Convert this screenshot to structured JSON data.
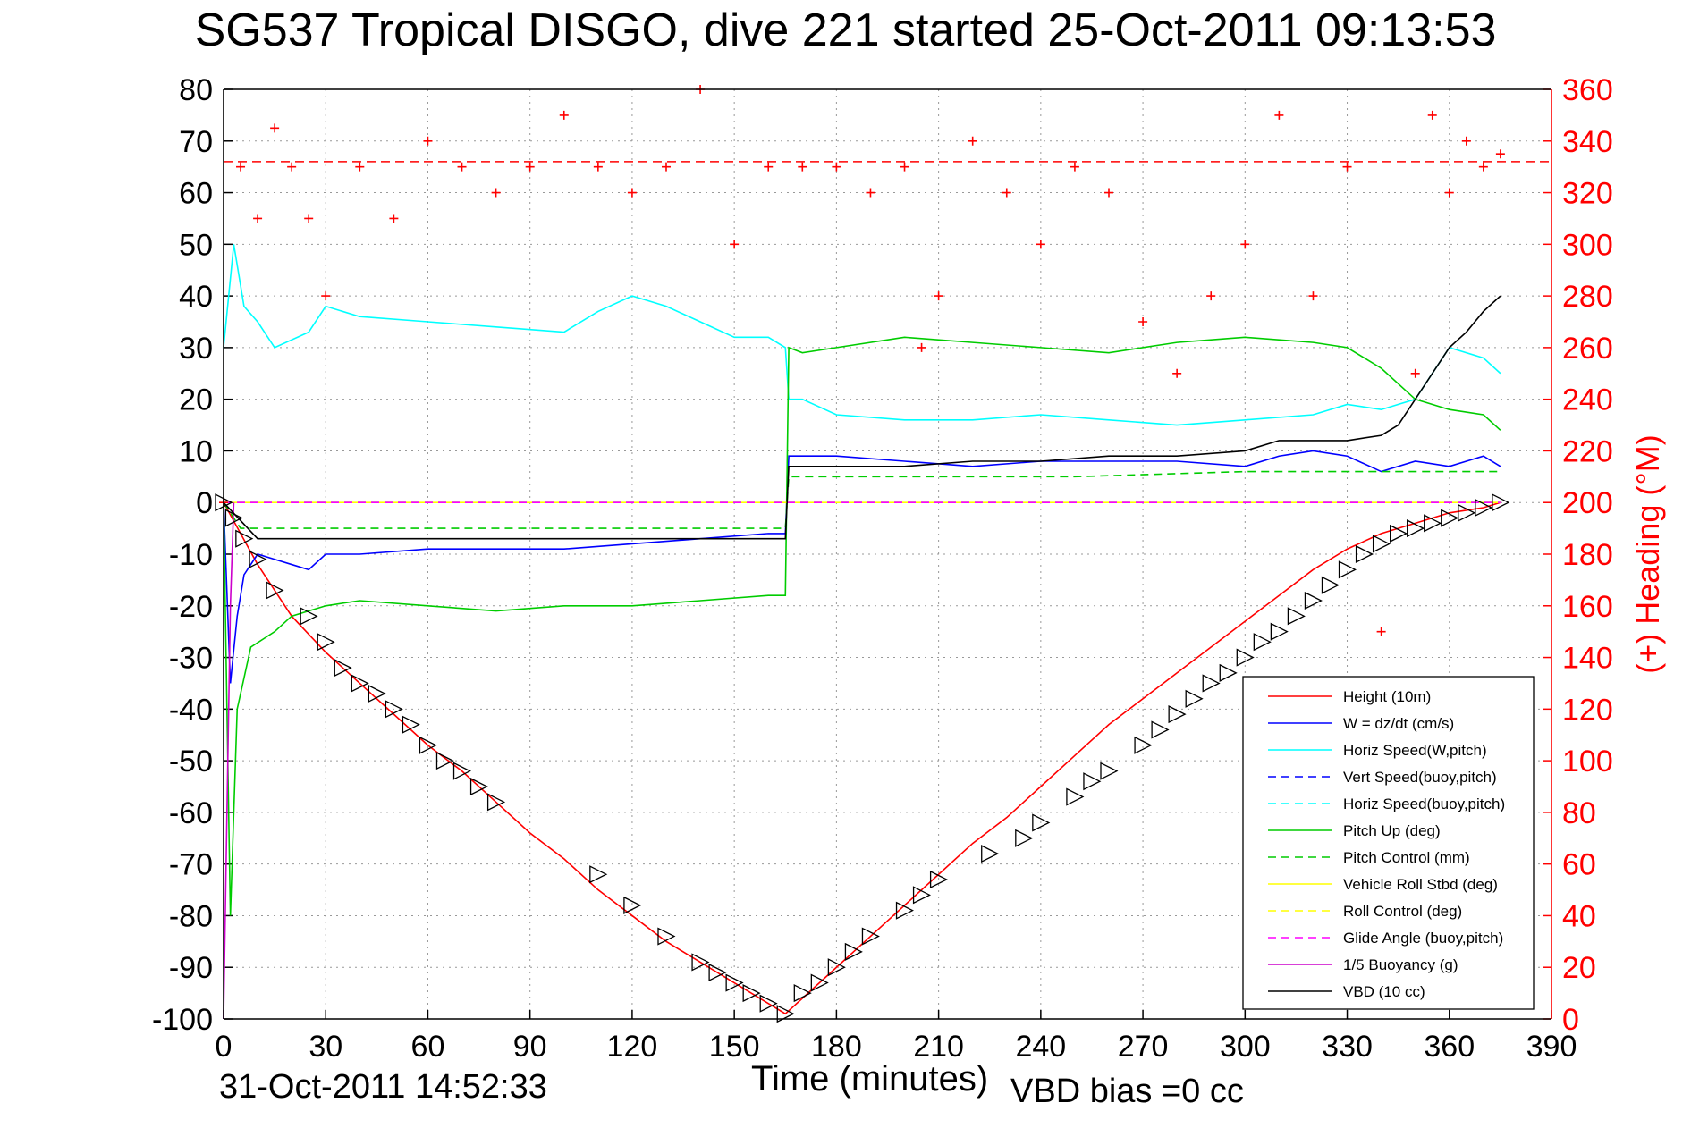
{
  "header": {
    "title": "SG537 Tropical DISGO, dive 221 started 25-Oct-2011 09:13:53"
  },
  "footer": {
    "plot_date": "31-Oct-2011 14:52:33",
    "vbd_bias": "VBD bias =0 cc"
  },
  "colors": {
    "height": "#ff0000",
    "w": "#0000ff",
    "horiz_speed": "#00ffff",
    "pitch": "#00cc00",
    "roll": "#ffff00",
    "glide": "#ff00ff",
    "buoyancy": "#cc00cc",
    "vbd": "#000000",
    "heading": "#ff0000"
  },
  "chart_data": {
    "type": "line",
    "title": "SG537 Tropical DISGO, dive 221 started 25-Oct-2011 09:13:53",
    "xlabel": "Time (minutes)",
    "ylabel": "",
    "y2label": "(+) Heading (°M)",
    "xlim": [
      0,
      390
    ],
    "ylim": [
      -100,
      80
    ],
    "y2lim": [
      0,
      360
    ],
    "grid": true,
    "legend_position": "bottom-right",
    "x_ticks": [
      "0",
      "30",
      "60",
      "90",
      "120",
      "150",
      "180",
      "210",
      "240",
      "270",
      "300",
      "330",
      "360",
      "390"
    ],
    "y_ticks": [
      "80",
      "70",
      "60",
      "50",
      "40",
      "30",
      "20",
      "10",
      "0",
      "-10",
      "-20",
      "-30",
      "-40",
      "-50",
      "-60",
      "-70",
      "-80",
      "-90",
      "-100"
    ],
    "y2_ticks": [
      "360",
      "340",
      "320",
      "300",
      "280",
      "260",
      "240",
      "220",
      "200",
      "180",
      "160",
      "140",
      "120",
      "100",
      "80",
      "60",
      "40",
      "20",
      "0"
    ],
    "heading_reference": 332,
    "series": [
      {
        "name": "Height (10m)",
        "style": "solid",
        "color": "#ff0000",
        "x": [
          0,
          5,
          10,
          20,
          30,
          40,
          50,
          60,
          70,
          80,
          90,
          100,
          110,
          120,
          130,
          140,
          150,
          160,
          165,
          170,
          180,
          190,
          200,
          210,
          220,
          230,
          240,
          250,
          260,
          270,
          280,
          290,
          300,
          310,
          320,
          330,
          340,
          350,
          360,
          370,
          375
        ],
        "y": [
          0,
          -6,
          -12,
          -22,
          -29,
          -35,
          -41,
          -47,
          -52,
          -58,
          -64,
          -69,
          -75,
          -80,
          -85,
          -89,
          -93,
          -97,
          -99,
          -96,
          -90,
          -84,
          -78,
          -72,
          -66,
          -61,
          -55,
          -49,
          -43,
          -38,
          -33,
          -28,
          -23,
          -18,
          -13,
          -9,
          -6,
          -4,
          -2,
          -1,
          0
        ]
      },
      {
        "name": "W = dz/dt (cm/s)",
        "style": "solid",
        "color": "#0000ff",
        "x": [
          0,
          2,
          4,
          6,
          10,
          15,
          20,
          25,
          30,
          40,
          60,
          80,
          100,
          120,
          140,
          160,
          165,
          166,
          170,
          180,
          200,
          220,
          240,
          260,
          280,
          300,
          310,
          320,
          330,
          340,
          350,
          360,
          370,
          375
        ],
        "y": [
          0,
          -35,
          -22,
          -14,
          -10,
          -11,
          -12,
          -13,
          -10,
          -10,
          -9,
          -9,
          -9,
          -8,
          -7,
          -6,
          -6,
          9,
          9,
          9,
          8,
          7,
          8,
          8,
          8,
          7,
          9,
          10,
          9,
          6,
          8,
          7,
          9,
          7
        ]
      },
      {
        "name": "Horiz Speed(W,pitch)",
        "style": "solid",
        "color": "#00ffff",
        "x": [
          0,
          3,
          6,
          10,
          15,
          25,
          30,
          40,
          60,
          80,
          100,
          110,
          120,
          130,
          140,
          150,
          160,
          165,
          166,
          170,
          180,
          200,
          220,
          240,
          260,
          280,
          300,
          320,
          330,
          340,
          350,
          360,
          370,
          375
        ],
        "y": [
          30,
          50,
          38,
          35,
          30,
          33,
          38,
          36,
          35,
          34,
          33,
          37,
          40,
          38,
          35,
          32,
          32,
          30,
          20,
          20,
          17,
          16,
          16,
          17,
          16,
          15,
          16,
          17,
          19,
          18,
          20,
          30,
          28,
          25
        ]
      },
      {
        "name": "Vert Speed(buoy,pitch)",
        "style": "dashed",
        "color": "#0000ff",
        "x": [
          0,
          165,
          166,
          375
        ],
        "y": [
          0,
          0,
          0,
          0
        ]
      },
      {
        "name": "Horiz Speed(buoy,pitch)",
        "style": "dashed",
        "color": "#00ffff",
        "x": [
          0,
          165,
          166,
          375
        ],
        "y": [
          0,
          0,
          0,
          0
        ]
      },
      {
        "name": "Pitch Up (deg)",
        "style": "solid",
        "color": "#00cc00",
        "x": [
          0,
          2,
          4,
          8,
          15,
          20,
          30,
          40,
          60,
          80,
          100,
          120,
          140,
          160,
          165,
          166,
          170,
          180,
          200,
          220,
          240,
          260,
          280,
          300,
          320,
          330,
          340,
          350,
          360,
          370,
          375
        ],
        "y": [
          0,
          -80,
          -40,
          -28,
          -25,
          -22,
          -20,
          -19,
          -20,
          -21,
          -20,
          -20,
          -19,
          -18,
          -18,
          30,
          29,
          30,
          32,
          31,
          30,
          29,
          31,
          32,
          31,
          30,
          26,
          20,
          18,
          17,
          14
        ]
      },
      {
        "name": "Pitch Control (mm)",
        "style": "dashed",
        "color": "#00cc00",
        "x": [
          0,
          5,
          20,
          165,
          166,
          200,
          250,
          300,
          375
        ],
        "y": [
          0,
          -5,
          -5,
          -5,
          5,
          5,
          5,
          6,
          6
        ]
      },
      {
        "name": "Vehicle Roll Stbd (deg)",
        "style": "solid",
        "color": "#ffff00",
        "x": [
          0,
          20,
          40,
          60,
          80,
          100,
          120,
          140,
          160,
          165,
          166,
          200,
          240,
          280,
          320,
          350,
          360,
          375
        ],
        "y": [
          0,
          0,
          0,
          0,
          0,
          0,
          0,
          0,
          0,
          0,
          0,
          0,
          0,
          0,
          0,
          0,
          0,
          0
        ]
      },
      {
        "name": "Roll Control (deg)",
        "style": "dashed",
        "color": "#ffff00",
        "x": [
          0,
          165,
          166,
          375
        ],
        "y": [
          0,
          0,
          0,
          0
        ]
      },
      {
        "name": "Glide Angle (buoy,pitch)",
        "style": "dashed",
        "color": "#ff00ff",
        "x": [
          0,
          375
        ],
        "y": [
          0,
          0
        ]
      },
      {
        "name": "1/5 Buoyancy (g)",
        "style": "solid",
        "color": "#cc00cc",
        "x": [
          0,
          1,
          2,
          3
        ],
        "y": [
          -100,
          -60,
          -20,
          0
        ]
      },
      {
        "name": "VBD (10 cc)",
        "style": "solid",
        "color": "#000000",
        "x": [
          0,
          10,
          20,
          165,
          166,
          200,
          220,
          240,
          260,
          280,
          300,
          310,
          320,
          330,
          340,
          345,
          350,
          355,
          360,
          365,
          370,
          375
        ],
        "y": [
          0,
          -7,
          -7,
          -7,
          7,
          7,
          8,
          8,
          9,
          9,
          10,
          12,
          12,
          12,
          13,
          15,
          20,
          25,
          30,
          33,
          37,
          40
        ]
      }
    ],
    "heading_series": {
      "name": "(+) Heading",
      "marker": "+",
      "color": "#ff0000",
      "axis": "right",
      "x": [
        0,
        5,
        10,
        15,
        20,
        25,
        30,
        40,
        50,
        60,
        70,
        80,
        90,
        100,
        110,
        120,
        130,
        140,
        150,
        160,
        170,
        180,
        190,
        200,
        205,
        210,
        220,
        230,
        240,
        250,
        260,
        270,
        280,
        290,
        300,
        310,
        320,
        330,
        340,
        350,
        355,
        360,
        365,
        370,
        375
      ],
      "y": [
        200,
        330,
        310,
        345,
        330,
        310,
        280,
        330,
        310,
        340,
        330,
        320,
        330,
        350,
        330,
        320,
        330,
        360,
        300,
        330,
        330,
        330,
        320,
        330,
        260,
        280,
        340,
        320,
        300,
        330,
        320,
        270,
        250,
        280,
        300,
        350,
        280,
        330,
        150,
        250,
        350,
        320,
        340,
        330,
        335
      ]
    },
    "markers": {
      "name": "triangles",
      "x": [
        0,
        3,
        6,
        10,
        15,
        25,
        30,
        35,
        40,
        45,
        50,
        55,
        60,
        65,
        70,
        75,
        80,
        110,
        120,
        130,
        140,
        145,
        150,
        155,
        160,
        165,
        170,
        175,
        180,
        185,
        190,
        200,
        205,
        210,
        225,
        235,
        240,
        250,
        255,
        260,
        270,
        275,
        280,
        285,
        290,
        295,
        300,
        305,
        310,
        315,
        320,
        325,
        330,
        335,
        340,
        345,
        350,
        355,
        360,
        365,
        370,
        375
      ],
      "y": [
        0,
        -3,
        -7,
        -11,
        -17,
        -22,
        -27,
        -32,
        -35,
        -37,
        -40,
        -43,
        -47,
        -50,
        -52,
        -55,
        -58,
        -72,
        -78,
        -84,
        -89,
        -91,
        -93,
        -95,
        -97,
        -99,
        -95,
        -93,
        -90,
        -87,
        -84,
        -79,
        -76,
        -73,
        -68,
        -65,
        -62,
        -57,
        -54,
        -52,
        -47,
        -44,
        -41,
        -38,
        -35,
        -33,
        -30,
        -27,
        -25,
        -22,
        -19,
        -16,
        -13,
        -10,
        -8,
        -6,
        -5,
        -4,
        -3,
        -2,
        -1,
        0
      ]
    }
  }
}
